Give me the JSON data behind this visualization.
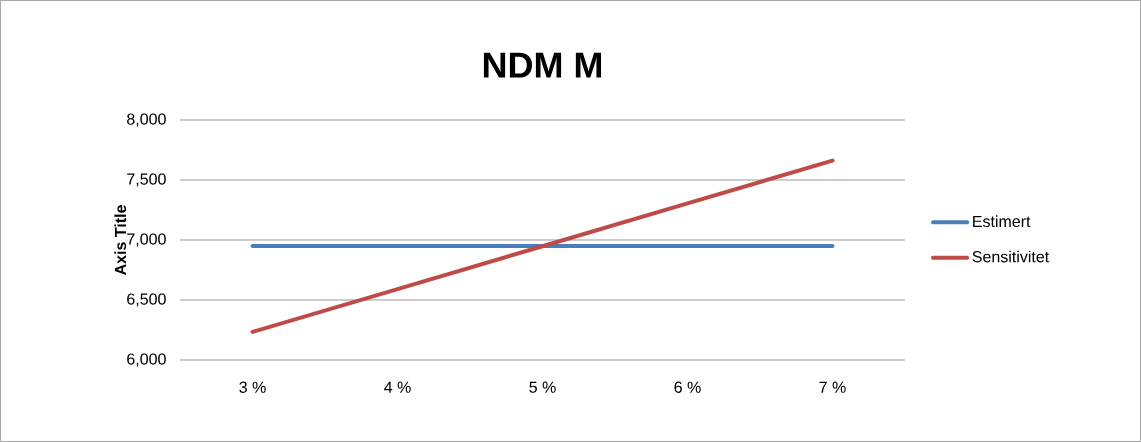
{
  "chart_data": {
    "type": "line",
    "title": "NDM M",
    "ylabel": "Axis Title",
    "categories": [
      "3 %",
      "4 %",
      "5 %",
      "6 %",
      "7 %"
    ],
    "series": [
      {
        "name": "Estimert",
        "color": "#4a7ebb",
        "values": [
          6950,
          6950,
          6950,
          6950,
          6950
        ]
      },
      {
        "name": "Sensitivitet",
        "color": "#be4b48",
        "values": [
          6234,
          6591,
          6948,
          7305,
          7662
        ]
      }
    ],
    "ylim": [
      6000,
      8000
    ],
    "yticks": [
      {
        "value": 6000,
        "label": "6,000"
      },
      {
        "value": 6500,
        "label": "6,500"
      },
      {
        "value": 7000,
        "label": "7,000"
      },
      {
        "value": 7500,
        "label": "7,500"
      },
      {
        "value": 8000,
        "label": "8,000"
      }
    ],
    "grid": "y",
    "legend": "right",
    "marker": "none",
    "line_style": "solid"
  }
}
